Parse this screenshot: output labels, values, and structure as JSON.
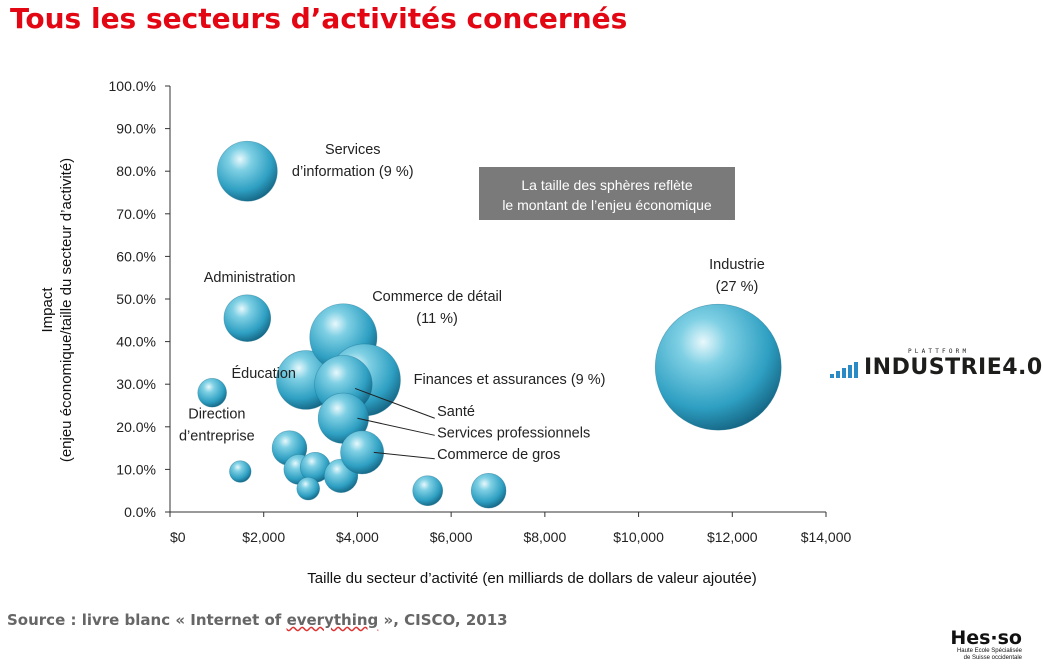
{
  "slide": {
    "title": "Tous les secteurs d’activités concernés",
    "source_prefix": "Source : livre blanc « Internet of ",
    "source_underlined": "everything",
    "source_suffix": " », CISCO, 2013"
  },
  "brand": {
    "small": "PLATTFORM",
    "big": "INDUSTRIE4.0",
    "bar_color": "#2a8ac6"
  },
  "footer_logo": {
    "main": "Hes·so",
    "sub1": "Haute Ecole Spécialisée",
    "sub2": "de Suisse occidentale"
  },
  "chart_data": {
    "type": "scatter",
    "variant": "bubble",
    "xlabel": "Taille du secteur d’activité (en milliards de dollars de valeur ajoutée)",
    "ylabel_line1": "Impact",
    "ylabel_line2": "(enjeu économique/taille du secteur d’activité)",
    "xlim": [
      0,
      14000
    ],
    "ylim": [
      0,
      100
    ],
    "x_ticks": [
      0,
      2000,
      4000,
      6000,
      8000,
      10000,
      12000,
      14000
    ],
    "x_tick_labels": [
      "$0",
      "$2,000",
      "$4,000",
      "$6,000",
      "$8,000",
      "$10,000",
      "$12,000",
      "$14,000"
    ],
    "y_ticks": [
      0,
      10,
      20,
      30,
      40,
      50,
      60,
      70,
      80,
      90,
      100
    ],
    "y_tick_labels": [
      "0.0%",
      "10.0%",
      "20.0%",
      "30.0%",
      "40.0%",
      "50.0%",
      "60.0%",
      "70.0%",
      "80.0%",
      "90.0%",
      "100.0%"
    ],
    "grid": false,
    "bubble_color": "#3aa7c6",
    "note_line1": "La taille des sphères reflète",
    "note_line2": "le montant de l’enjeu économique",
    "points": [
      {
        "x": 1650,
        "y": 80,
        "r": 1.0
      },
      {
        "x": 1650,
        "y": 45.5,
        "r": 0.78
      },
      {
        "x": 900,
        "y": 28,
        "r": 0.48
      },
      {
        "x": 1500,
        "y": 9.5,
        "r": 0.36
      },
      {
        "x": 2550,
        "y": 15,
        "r": 0.58
      },
      {
        "x": 2750,
        "y": 10,
        "r": 0.5
      },
      {
        "x": 3100,
        "y": 10.5,
        "r": 0.5
      },
      {
        "x": 2950,
        "y": 5.5,
        "r": 0.38
      },
      {
        "x": 3650,
        "y": 8.5,
        "r": 0.56
      },
      {
        "x": 2900,
        "y": 31,
        "r": 0.98
      },
      {
        "x": 3700,
        "y": 41,
        "r": 1.12
      },
      {
        "x": 4150,
        "y": 31,
        "r": 1.2
      },
      {
        "x": 3700,
        "y": 30,
        "r": 0.96
      },
      {
        "x": 3700,
        "y": 22,
        "r": 0.84
      },
      {
        "x": 4100,
        "y": 14,
        "r": 0.72
      },
      {
        "x": 5500,
        "y": 5,
        "r": 0.5
      },
      {
        "x": 6800,
        "y": 5,
        "r": 0.58
      },
      {
        "x": 11700,
        "y": 34,
        "r": 2.1
      }
    ],
    "labels": [
      {
        "lines": [
          "Services",
          "d’information (9 %)"
        ],
        "x": 3900,
        "y": 84,
        "align": "middle"
      },
      {
        "lines": [
          "Administration"
        ],
        "x": 1700,
        "y": 54,
        "align": "middle"
      },
      {
        "lines": [
          "Commerce de détail",
          "(11 %)"
        ],
        "x": 5700,
        "y": 49.5,
        "align": "middle"
      },
      {
        "lines": [
          "Industrie",
          "(27 %)"
        ],
        "x": 12100,
        "y": 57,
        "align": "middle"
      },
      {
        "lines": [
          "Éducation"
        ],
        "x": 2000,
        "y": 31.5,
        "align": "middle"
      },
      {
        "lines": [
          "Finances et assurances (9 %)"
        ],
        "x": 5200,
        "y": 30,
        "align": "start"
      },
      {
        "lines": [
          "Direction",
          "d’entreprise"
        ],
        "x": 1000,
        "y": 22,
        "align": "middle"
      },
      {
        "lines": [
          "Santé"
        ],
        "x": 5700,
        "y": 22.5,
        "align": "start"
      },
      {
        "lines": [
          "Services professionnels"
        ],
        "x": 5700,
        "y": 17.5,
        "align": "start"
      },
      {
        "lines": [
          "Commerce de gros"
        ],
        "x": 5700,
        "y": 12.5,
        "align": "start"
      }
    ],
    "leaders": [
      {
        "from": [
          3950,
          29
        ],
        "to": [
          5650,
          22
        ]
      },
      {
        "from": [
          4000,
          22
        ],
        "to": [
          5650,
          18
        ]
      },
      {
        "from": [
          4350,
          14
        ],
        "to": [
          5650,
          12.5
        ]
      }
    ]
  }
}
